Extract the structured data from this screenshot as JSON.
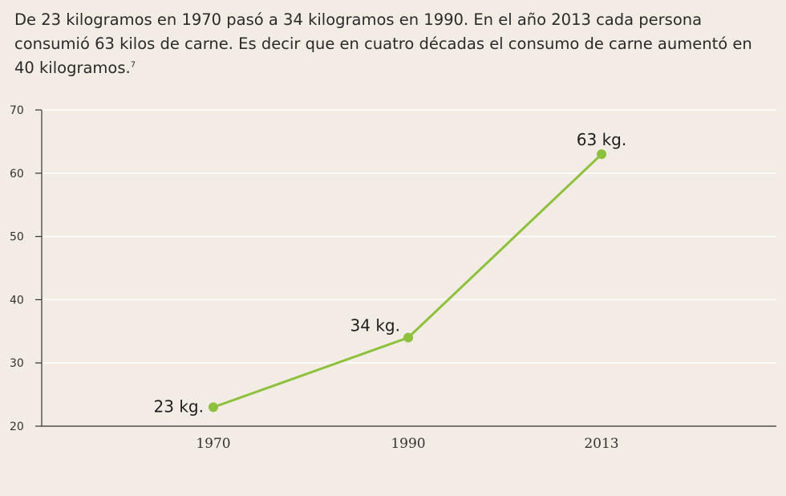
{
  "intro": {
    "text": "De 23 kilogramos en 1970 pasó a 34 kilogramos en 1990. En el año 2013 cada persona consumió 63 kilos de carne. Es decir que en cuatro décadas el consumo de carne aumentó en 40 kilogramos.",
    "footnote": "7"
  },
  "chart_data": {
    "type": "line",
    "title": "",
    "xlabel": "",
    "ylabel": "",
    "categories": [
      "1970",
      "1990",
      "2013"
    ],
    "series": [
      {
        "values": [
          23,
          34,
          63
        ],
        "color": "#8dc03c"
      }
    ],
    "data_labels": [
      "23 kg.",
      "34 kg.",
      "63 kg."
    ],
    "ylim": [
      20,
      70
    ],
    "yticks": [
      20,
      30,
      40,
      50,
      60,
      70
    ],
    "grid": true,
    "line_color": "#8dc03c",
    "grid_color": "#ffffff"
  }
}
